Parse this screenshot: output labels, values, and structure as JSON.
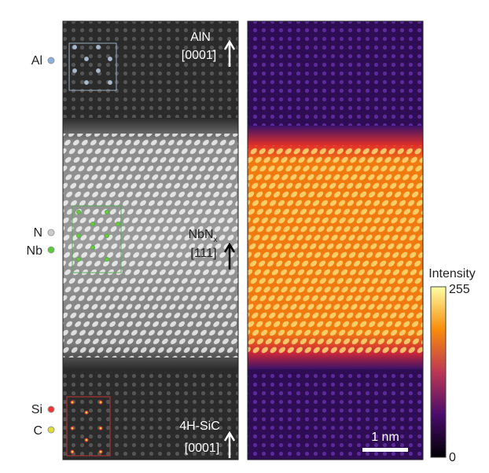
{
  "figure": {
    "left_labels": {
      "al": "Al",
      "n": "N",
      "nb": "Nb",
      "si": "Si",
      "c": "C"
    },
    "annotations": {
      "aln": "AlN",
      "aln_dir": "[0001̄]",
      "nbn": "NbN",
      "nbn_sub": "x",
      "nbn_dir": "[111]",
      "sic": "4H-SiC",
      "sic_dir": "[0001]"
    },
    "colorbar": {
      "title": "Intensity",
      "max": "255",
      "min": "0"
    },
    "scalebar": "1 nm"
  }
}
